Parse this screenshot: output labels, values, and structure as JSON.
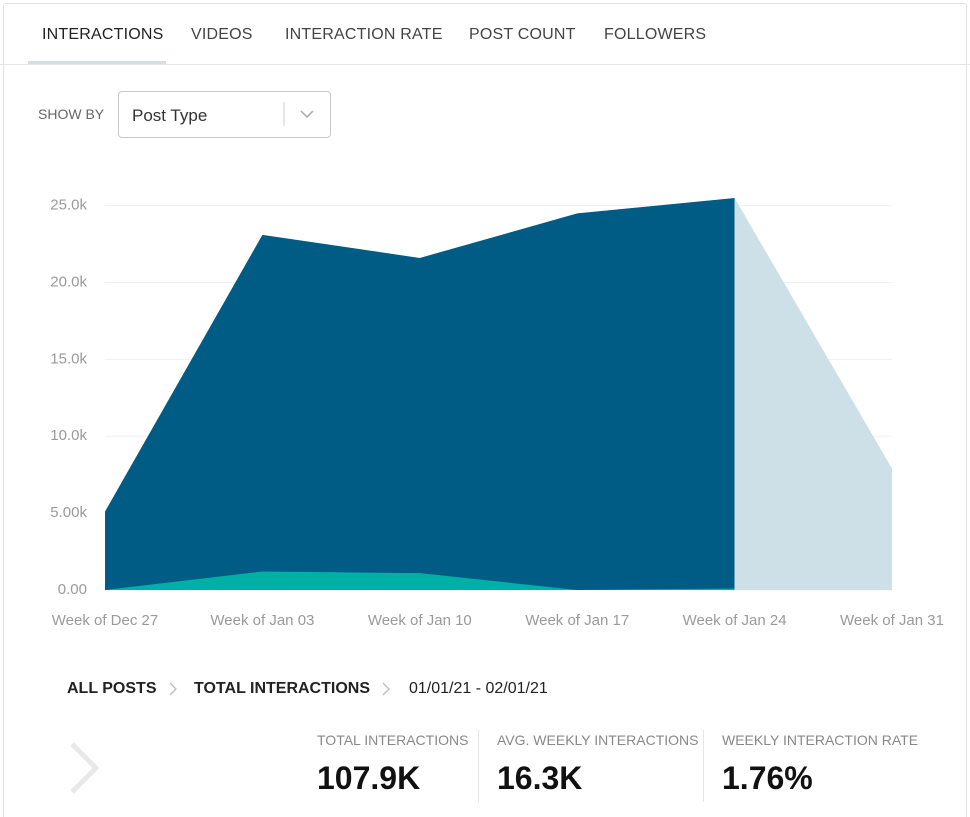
{
  "tabs": [
    "INTERACTIONS",
    "VIDEOS",
    "INTERACTION RATE",
    "POST COUNT",
    "FOLLOWERS"
  ],
  "show_by": {
    "label": "SHOW BY",
    "selected": "Post Type"
  },
  "chart_data": {
    "type": "area",
    "categories": [
      "Week of Dec 27",
      "Week of Jan 03",
      "Week of Jan 10",
      "Week of Jan 17",
      "Week of Jan 24",
      "Week of Jan 31"
    ],
    "series": [
      {
        "color": "#005b85",
        "values": [
          5100,
          23100,
          21600,
          24500,
          25500,
          null
        ]
      },
      {
        "color": "#00b0a4",
        "values": [
          0,
          1200,
          1100,
          0,
          100,
          null
        ]
      },
      {
        "color": "#cddfe7",
        "values": [
          null,
          null,
          null,
          null,
          25500,
          7900
        ]
      }
    ],
    "ylim": [
      0,
      25500
    ],
    "yticks": [
      {
        "value": 0,
        "label": "0.00"
      },
      {
        "value": 5000,
        "label": "5.00k"
      },
      {
        "value": 10000,
        "label": "10.0k"
      },
      {
        "value": 15000,
        "label": "15.0k"
      },
      {
        "value": 20000,
        "label": "20.0k"
      },
      {
        "value": 25000,
        "label": "25.0k"
      }
    ],
    "grid": true
  },
  "breadcrumb": [
    "ALL POSTS",
    "TOTAL INTERACTIONS",
    "01/01/21 - 02/01/21"
  ],
  "stats": [
    {
      "label": "TOTAL INTERACTIONS",
      "value": "107.9K"
    },
    {
      "label": "AVG. WEEKLY INTERACTIONS",
      "value": "16.3K"
    },
    {
      "label": "WEEKLY INTERACTION RATE",
      "value": "1.76%"
    }
  ]
}
